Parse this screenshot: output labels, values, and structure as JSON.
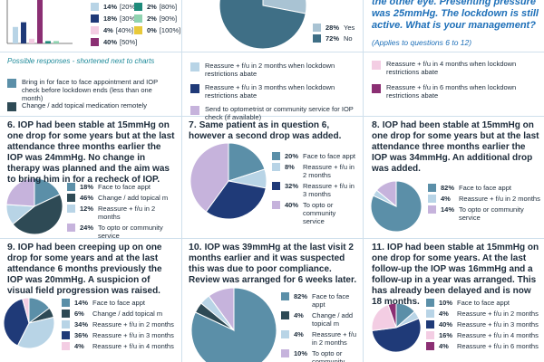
{
  "chart_data": [
    {
      "type": "bar",
      "series": [
        {
          "name": "[20%]",
          "color": "#b8d4e6",
          "values": [
            14
          ],
          "value_labels": [
            "14%"
          ]
        },
        {
          "name": "[30%]",
          "color": "#1f3a78",
          "values": [
            18
          ],
          "value_labels": [
            "18%"
          ]
        },
        {
          "name": "[40%]",
          "color": "#f3cde3",
          "values": [
            4
          ],
          "value_labels": [
            "4%"
          ]
        },
        {
          "name": "[50%]",
          "color": "#8b2f73",
          "values": [
            40
          ],
          "value_labels": [
            "40%"
          ]
        },
        {
          "name": "[80%]",
          "color": "#1e8a7a",
          "values": [
            2
          ],
          "value_labels": [
            "2%"
          ]
        },
        {
          "name": "[90%]",
          "color": "#8fd3b0",
          "values": [
            2
          ],
          "value_labels": [
            "2%"
          ]
        },
        {
          "name": "[100%]",
          "color": "#e8c93a",
          "values": [
            0
          ],
          "value_labels": [
            "0%"
          ]
        }
      ]
    },
    {
      "type": "pie",
      "categories": [
        "Yes",
        "No"
      ],
      "values": [
        28,
        72
      ],
      "value_labels": [
        "28%",
        "72%"
      ],
      "colors": [
        "#a9c3d3",
        "#3f6f86"
      ]
    },
    {
      "type": "pie",
      "number": "6.",
      "title": "IOP had been stable at 15mmHg on one drop for some years but at the last attendance three months earlier the IOP was 24mmHg. No change in therapy was planned and the aim was to bring him in for a recheck of IOP.",
      "categories": [
        "Face to face appt",
        "Change / add topical m",
        "Reassure + f/u in 2 months",
        "To opto or community service"
      ],
      "values": [
        18,
        46,
        12,
        24
      ],
      "value_labels": [
        "18%",
        "46%",
        "12%",
        "24%"
      ],
      "colors": [
        "#5b8fa8",
        "#2e4a55",
        "#b8d4e6",
        "#c6b3dc"
      ]
    },
    {
      "type": "pie",
      "number": "7.",
      "title": "Same patient as in question 6, however a second drop was added.",
      "categories": [
        "Face to face appt",
        "Reassure + f/u in 2 months",
        "Reassure + f/u in 3 months",
        "To opto or community service"
      ],
      "values": [
        20,
        8,
        32,
        40
      ],
      "value_labels": [
        "20%",
        "8%",
        "32%",
        "40%"
      ],
      "colors": [
        "#5b8fa8",
        "#b8d4e6",
        "#1f3a78",
        "#c6b3dc"
      ]
    },
    {
      "type": "pie",
      "number": "8.",
      "title": "IOP had been stable at 15mmHg on one drop for some years but at the last attendance three months earlier the IOP was 34mmHg. An additional drop was added.",
      "categories": [
        "Face to face appt",
        "Reassure + f/u in 2 months",
        "To opto or community service"
      ],
      "values": [
        82,
        4,
        14
      ],
      "value_labels": [
        "82%",
        "4%",
        "14%"
      ],
      "colors": [
        "#5b8fa8",
        "#b8d4e6",
        "#c6b3dc"
      ]
    },
    {
      "type": "pie",
      "number": "9.",
      "title": "IOP had been creeping up on one drop for some years and at the last attendance 6 months previously the IOP was 20mmHg. A suspicion of visual field progression was raised.",
      "categories": [
        "Face to face appt",
        "Change / add topical m",
        "Reassure + f/u in 2 months",
        "Reassure + f/u in 3 months",
        "Reassure + f/u in 4 months"
      ],
      "values": [
        14,
        6,
        34,
        36,
        4
      ],
      "value_labels": [
        "14%",
        "6%",
        "34%",
        "36%",
        "4%"
      ],
      "colors": [
        "#5b8fa8",
        "#2e4a55",
        "#b8d4e6",
        "#1f3a78",
        "#f3cde3"
      ]
    },
    {
      "type": "pie",
      "number": "10.",
      "title": "IOP was 39mmHg at the last visit 2 months earlier and it was suspected this was due to poor compliance. Review was arranged for 6 weeks later.",
      "categories": [
        "Face to face appt",
        "Change / add topical m",
        "Reassure + f/u in 2 months",
        "To opto or community"
      ],
      "values": [
        82,
        4,
        4,
        10
      ],
      "value_labels": [
        "82%",
        "4%",
        "4%",
        "10%"
      ],
      "colors": [
        "#5b8fa8",
        "#2e4a55",
        "#b8d4e6",
        "#c6b3dc"
      ]
    },
    {
      "type": "pie",
      "number": "11.",
      "title": "IOP had been stable at 15mmHg on one drop for some years. At the last follow-up the IOP was 16mmHg and a follow-up in a year was arranged. This has already been delayed and is now 18 months.",
      "categories": [
        "Face to face appt",
        "Reassure + f/u in 2 months",
        "Reassure + f/u in 3 months",
        "Reassure + f/u in 4 months",
        "Reassure + f/u in 6 months"
      ],
      "values": [
        10,
        4,
        40,
        16,
        4
      ],
      "value_labels": [
        "10%",
        "4%",
        "40%",
        "16%",
        "4%"
      ],
      "colors": [
        "#5b8fa8",
        "#b8d4e6",
        "#1f3a78",
        "#f3cde3",
        "#8b2f73"
      ]
    }
  ],
  "intro": {
    "text": "the other eye. Presenting pressure was 25mmHg. The lockdown is still active. What is your management?",
    "note": "(Applies to questions 6 to 12)"
  },
  "responses": {
    "heading": "Possible responses - shortened next to charts",
    "items": [
      {
        "text": "Bring in for face to face appointment and IOP check before lockdown ends (less than one month)",
        "color": "#5b8fa8"
      },
      {
        "text": "Change / add topical medication remotely",
        "color": "#2e4a55"
      },
      {
        "text": "Reassure + f/u in 2 months when lockdown restrictions abate",
        "color": "#b8d4e6"
      },
      {
        "text": "Reassure + f/u in 3 months when lockdown restrictions abate",
        "color": "#1f3a78"
      },
      {
        "text": "Send to optometrist or community service for IOP check (if available)",
        "color": "#c6b3dc"
      },
      {
        "text": "Reassure + f/u in 4 months when lockdown restrictions abate",
        "color": "#f3cde3"
      },
      {
        "text": "Reassure + f/u in 6 months when lockdown restrictions abate",
        "color": "#8b2f73"
      }
    ]
  }
}
